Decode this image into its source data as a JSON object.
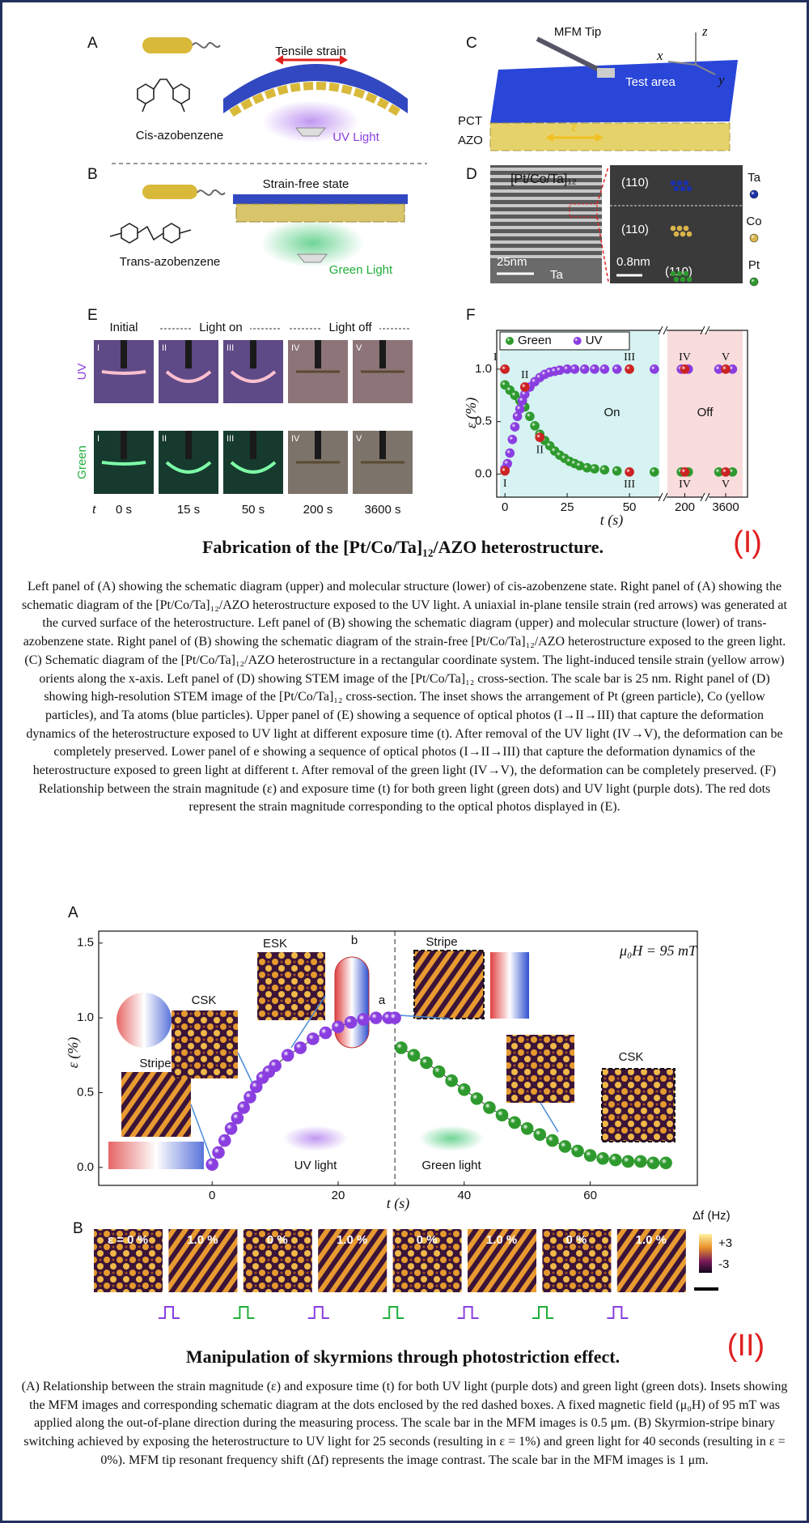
{
  "figure_1": {
    "panel_a": {
      "label": "A",
      "molecule": "Cis-azobenzene",
      "strain": "Tensile strain",
      "light": "UV Light"
    },
    "panel_b": {
      "label": "B",
      "state": "Strain-free state",
      "molecule": "Trans-azobenzene",
      "light": "Green Light"
    },
    "panel_c": {
      "label": "C",
      "tip": "MFM Tip",
      "area": "Test area",
      "axes": [
        "x",
        "y",
        "z"
      ],
      "layers": [
        "PCT",
        "AZO"
      ],
      "strain": "ε"
    },
    "panel_d": {
      "label": "D",
      "stack": "[Pt/Co/Ta]₁₂",
      "scale_left": "25nm",
      "substrate": "Ta",
      "planes": [
        "(110)",
        "(110)",
        "(110)"
      ],
      "scale_right": "0.8nm",
      "atoms": [
        {
          "name": "Ta",
          "color": "#1a2fa8"
        },
        {
          "name": "Co",
          "color": "#d9b44a"
        },
        {
          "name": "Pt",
          "color": "#2e9a2e"
        }
      ]
    },
    "panel_e": {
      "label": "E",
      "stages": [
        "Initial",
        "Light on",
        "Light off"
      ],
      "rows": [
        {
          "name": "UV",
          "color": "#8a3ee0"
        },
        {
          "name": "Green",
          "color": "#1fae3a"
        }
      ],
      "frames": [
        "I",
        "II",
        "III",
        "IV",
        "V"
      ],
      "time_label": "t",
      "times": [
        "0 s",
        "15 s",
        "50 s",
        "200 s",
        "3600 s"
      ]
    },
    "panel_f": {
      "label": "F"
    },
    "title": "Fabrication of the [Pt/Co/Ta]₁₂/AZO heterostructure.",
    "tag": "(I)",
    "caption": "Left panel of (A) showing the schematic diagram (upper) and molecular structure (lower) of cis-azobenzene state. Right panel of (A) showing the schematic diagram of the [Pt/Co/Ta]₁₂/AZO heterostructure exposed to the UV light. A uniaxial in-plane tensile strain (red arrows) was generated at the curved surface of the heterostructure. Left panel of (B) showing the schematic diagram (upper) and molecular structure (lower) of trans-azobenzene state. Right panel of (B) showing the schematic diagram of the strain-free [Pt/Co/Ta]₁₂/AZO heterostructure exposed to the green light. (C) Schematic diagram of the [Pt/Co/Ta]₁₂/AZO heterostructure in a rectangular coordinate system. The light-induced tensile strain (yellow arrow) orients along the x-axis. Left panel of (D) showing STEM image of the [Pt/Co/Ta]₁₂ cross-section. The scale bar is 25 nm. Right panel of (D) showing high-resolution STEM image of the [Pt/Co/Ta]₁₂ cross-section. The inset shows the arrangement of Pt (green particle), Co (yellow particles), and Ta atoms (blue particles). Upper panel of (E) showing a sequence of optical photos (I→II→III) that capture the deformation dynamics of the heterostructure exposed to UV light at different exposure time (t). After removal of the UV light (IV→V), the deformation can be completely preserved. Lower panel of e showing a sequence of optical photos (I→II→III) that capture the deformation dynamics of the heterostructure exposed to green light at different t. After removal of the green light (IV→V), the deformation can be completely preserved. (F) Relationship between the strain magnitude (ε) and exposure time (t) for both green light (green dots) and UV light (purple dots). The red dots represent the strain magnitude corresponding to the optical photos displayed in (E)."
  },
  "figure_2": {
    "panel_a": {
      "label": "A",
      "insets": [
        "Stripe",
        "CSK",
        "ESK",
        "Stripe",
        "CSK"
      ],
      "dims": [
        "b",
        "a"
      ]
    },
    "panel_b": {
      "label": "B",
      "frames": [
        "ε = 0 %",
        "1.0 %",
        "0 %",
        "1.0 %",
        "0 %",
        "1.0 %",
        "0 %",
        "1.0 %"
      ],
      "colorbar": {
        "label": "Δf (Hz)",
        "ticks": [
          "+3",
          "-3"
        ]
      }
    },
    "title": "Manipulation of skyrmions through photostriction effect.",
    "tag": "(II)",
    "caption": "(A) Relationship between the strain magnitude (ε) and exposure time (t) for both UV light (purple dots) and green light (green dots). Insets showing the MFM images and corresponding schematic diagram at the dots enclosed by the red dashed boxes. A fixed magnetic field (μ₀H) of 95 mT was applied along the out-of-plane direction during the measuring process. The scale bar in the MFM images is 0.5 μm. (B) Skyrmion-stripe binary switching achieved by exposing the heterostructure to UV light for 25 seconds (resulting in ε = 1%) and green light for 40 seconds (resulting in ε = 0%). MFM tip resonant frequency shift (Δf) represents the image contrast. The scale bar in the MFM images is 1 μm."
  },
  "chart_data": [
    {
      "type": "scatter",
      "x_label": "t (s)",
      "y_label": "ε (%)",
      "xlim": [
        -2,
        3650
      ],
      "x_breaks": [
        [
          62,
          150
        ],
        [
          250,
          3550
        ]
      ],
      "xticks": [
        0,
        25,
        50,
        200,
        3600
      ],
      "ylim": [
        -0.22,
        1.37
      ],
      "yticks": [
        {
          "value": 0,
          "label": "0.0"
        },
        {
          "value": 0.5,
          "label": "0.5"
        },
        {
          "value": 1,
          "label": "1.0"
        }
      ],
      "legend": "upper left",
      "regions": [
        {
          "label": "On",
          "x": [
            -2,
            62
          ],
          "color": "#d6f2f2"
        },
        {
          "label": "Off",
          "x": [
            150,
            3650
          ],
          "color": "#f9dcdc"
        }
      ],
      "series": [
        {
          "name": "Green",
          "color": "#2e9a2e",
          "x": [
            0,
            2,
            4,
            6,
            8,
            10,
            12,
            14,
            16,
            18,
            20,
            22,
            24,
            26,
            28,
            30,
            33,
            36,
            40,
            45,
            60,
            190,
            210,
            3580,
            3620
          ],
          "values": [
            0.85,
            0.8,
            0.75,
            0.7,
            0.64,
            0.55,
            0.46,
            0.38,
            0.32,
            0.27,
            0.22,
            0.18,
            0.15,
            0.12,
            0.1,
            0.08,
            0.06,
            0.05,
            0.04,
            0.03,
            0.02,
            0.02,
            0.02,
            0.02,
            0.02
          ]
        },
        {
          "name": "UV",
          "color": "#8a3ee0",
          "x": [
            0,
            1,
            2,
            3,
            4,
            5,
            6,
            7,
            8,
            10,
            12,
            14,
            16,
            18,
            20,
            22,
            25,
            28,
            32,
            36,
            40,
            45,
            60,
            190,
            210,
            3580,
            3620
          ],
          "values": [
            0.05,
            0.1,
            0.2,
            0.33,
            0.45,
            0.55,
            0.62,
            0.7,
            0.76,
            0.83,
            0.88,
            0.92,
            0.95,
            0.97,
            0.98,
            0.99,
            1.0,
            1.0,
            1.0,
            1.0,
            1.0,
            1.0,
            1.0,
            1.0,
            1.0,
            1.0,
            1.0
          ]
        },
        {
          "color": "#cc2222",
          "x": [
            0,
            8,
            50,
            200,
            3600,
            0,
            14,
            50,
            200,
            3600
          ],
          "values": [
            1.0,
            0.83,
            1.0,
            1.0,
            1.0,
            0.03,
            0.35,
            0.02,
            0.02,
            0.02
          ],
          "point_labels": [
            "I",
            "II",
            "III",
            "IV",
            "V",
            "I",
            "II",
            "III",
            "IV",
            "V"
          ]
        }
      ]
    },
    {
      "type": "scatter",
      "x_label": "t (s)",
      "y_label": "ε (%)",
      "xlim": [
        -18,
        77
      ],
      "xticks": [
        0,
        20,
        40,
        60
      ],
      "ylim": [
        -0.12,
        1.58
      ],
      "yticks": [
        {
          "value": 0,
          "label": "0.0"
        },
        {
          "value": 0.5,
          "label": "0.5"
        },
        {
          "value": 1,
          "label": "1.0"
        },
        {
          "value": 1.5,
          "label": "1.5"
        }
      ],
      "legend": "inline",
      "connect": true,
      "divider_x": 29,
      "annotation": "μ₀H = 95 mT",
      "series": [
        {
          "name": "UV light",
          "color": "#8a3ee0",
          "x": [
            0,
            1,
            2,
            3,
            4,
            5,
            6,
            7,
            8,
            9,
            10,
            12,
            14,
            16,
            18,
            20,
            22,
            24,
            26,
            28,
            29
          ],
          "values": [
            0.02,
            0.1,
            0.18,
            0.26,
            0.33,
            0.4,
            0.47,
            0.54,
            0.6,
            0.64,
            0.68,
            0.75,
            0.8,
            0.86,
            0.9,
            0.94,
            0.97,
            0.99,
            1.0,
            1.0,
            1.0
          ]
        },
        {
          "name": "Green light",
          "color": "#2e9a2e",
          "x": [
            30,
            32,
            34,
            36,
            38,
            40,
            42,
            44,
            46,
            48,
            50,
            52,
            54,
            56,
            58,
            60,
            62,
            64,
            66,
            68,
            70,
            72
          ],
          "values": [
            0.8,
            0.75,
            0.7,
            0.64,
            0.58,
            0.52,
            0.46,
            0.4,
            0.35,
            0.3,
            0.26,
            0.22,
            0.18,
            0.14,
            0.11,
            0.08,
            0.06,
            0.05,
            0.04,
            0.04,
            0.03,
            0.03
          ]
        }
      ]
    }
  ]
}
